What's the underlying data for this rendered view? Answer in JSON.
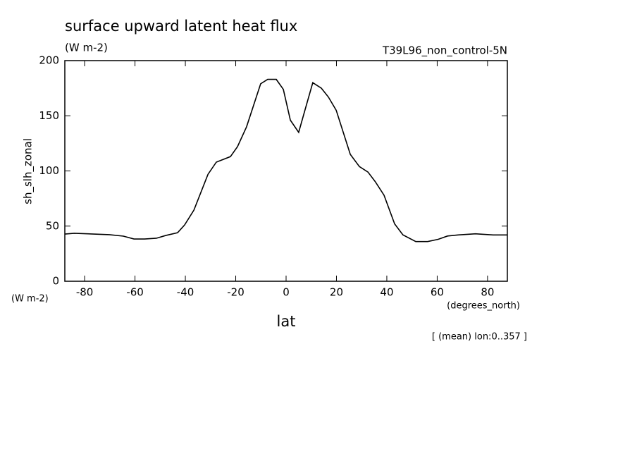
{
  "chart_data": {
    "type": "line",
    "title": "surface upward latent heat flux",
    "subtitle": "(W m-2)",
    "annotation": "T39L96_non_control-5N",
    "ylabel": "sh_slh_zonal",
    "yunit": "(W m-2)",
    "xlabel": "lat",
    "xunit": "(degrees_north)",
    "footnote": "[ (mean) lon:0..357 ]",
    "color": "#000000",
    "x": [
      -87.9,
      -84.1,
      -70.2,
      -64.6,
      -60.4,
      -56.2,
      -51.5,
      -47.8,
      -43.1,
      -40.3,
      -36.6,
      -31.0,
      -27.7,
      -22.1,
      -19.3,
      -15.7,
      -10.1,
      -7.3,
      -3.9,
      -1.1,
      1.7,
      5.0,
      7.6,
      10.6,
      14.0,
      16.8,
      19.9,
      25.5,
      29.1,
      32.5,
      35.5,
      38.9,
      43.1,
      46.4,
      51.5,
      56.2,
      60.4,
      64.1,
      68.3,
      75.2,
      82.2,
      87.9
    ],
    "values": [
      42.8,
      43.5,
      42.2,
      40.9,
      38.3,
      38.3,
      39,
      41.5,
      44,
      51,
      64.5,
      97,
      108,
      113,
      122,
      140,
      179,
      183,
      183,
      174,
      146,
      135,
      156,
      180,
      175,
      167,
      155,
      115,
      104,
      99,
      90,
      78,
      52,
      42,
      36,
      36,
      38,
      41,
      42,
      43,
      42,
      42
    ],
    "xlim": [
      -87.86,
      87.86
    ],
    "xticks": [
      -80,
      -60,
      -40,
      -20,
      0,
      20,
      40,
      60,
      80
    ],
    "ylim": [
      0,
      200
    ],
    "yticks": [
      0,
      50,
      100,
      150,
      200
    ]
  }
}
